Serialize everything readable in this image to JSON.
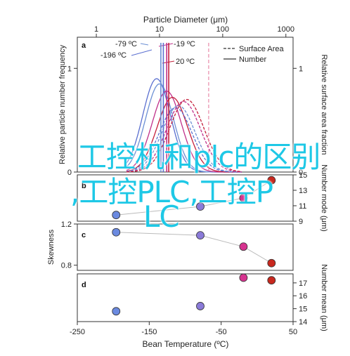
{
  "chart_data": [
    {
      "panel": "a",
      "type": "line",
      "top_axis": {
        "label": "Particle Diameter (μm)",
        "scale": "log",
        "ticks": [
          "1",
          "10",
          "100",
          "1000"
        ],
        "range": [
          0.5,
          1300
        ]
      },
      "y_left": {
        "label": "Relative particle number frequency",
        "ticks": [
          "0",
          "1"
        ],
        "range": [
          0,
          1.3
        ]
      },
      "y_right": {
        "label": "Relative surface area fraction",
        "ticks": [
          "0",
          "1"
        ],
        "range": [
          0,
          1.3
        ]
      },
      "legend": {
        "placement": "top-right",
        "entries": [
          {
            "label": "Surface Area",
            "style": "dashed"
          },
          {
            "label": "Number",
            "style": "solid"
          }
        ]
      },
      "annotations": [
        {
          "text": "-79 ºC",
          "color": "#6b8fd4"
        },
        {
          "text": "-196 ºC",
          "color": "#5a6fd0"
        },
        {
          "text": "-19 ºC",
          "color": "#c0308a"
        },
        {
          "text": "20 ºC",
          "color": "#c41e3a"
        }
      ],
      "vertical_markers": [
        {
          "x": 10.5,
          "color": "#6b8fd4"
        },
        {
          "x": 11.5,
          "color": "#5a6fd0"
        },
        {
          "x": 13.0,
          "color": "#c0308a"
        },
        {
          "x": 14.0,
          "color": "#c41e3a"
        },
        {
          "x": 60,
          "color": "#e88aa8",
          "style": "dashed"
        }
      ],
      "series": [
        {
          "name": "-196 ºC",
          "kind": "number",
          "color": "#5a6fd0",
          "peak_x": 9,
          "peak_y": 0.9,
          "width": 0.22
        },
        {
          "name": "-79 ºC",
          "kind": "number",
          "color": "#6b8fd4",
          "peak_x": 10,
          "peak_y": 0.85,
          "width": 0.22
        },
        {
          "name": "-19 ºC",
          "kind": "number",
          "color": "#c0308a",
          "peak_x": 13,
          "peak_y": 0.78,
          "width": 0.23
        },
        {
          "name": "20 ºC",
          "kind": "number",
          "color": "#c41e3a",
          "peak_x": 16,
          "peak_y": 0.72,
          "width": 0.24
        },
        {
          "name": "-196 ºC",
          "kind": "surface",
          "color": "#5a6fd0",
          "peak_x": 18,
          "peak_y": 0.62,
          "width": 0.26
        },
        {
          "name": "-79 ºC",
          "kind": "surface",
          "color": "#6b8fd4",
          "peak_x": 20,
          "peak_y": 0.64,
          "width": 0.26
        },
        {
          "name": "-19 ºC",
          "kind": "surface",
          "color": "#c0308a",
          "peak_x": 24,
          "peak_y": 0.68,
          "width": 0.27
        },
        {
          "name": "20 ºC",
          "kind": "surface",
          "color": "#c41e3a",
          "peak_x": 27,
          "peak_y": 0.7,
          "width": 0.27
        }
      ]
    },
    {
      "panel": "b",
      "type": "scatter",
      "y_right": {
        "label": "Number mode (μm)",
        "ticks": [
          "9",
          "11",
          "13",
          "15"
        ],
        "range": [
          9,
          15
        ]
      },
      "x": [
        -196,
        -79,
        -19,
        20
      ],
      "values": [
        9.8,
        10.9,
        12.0,
        14.3
      ]
    },
    {
      "panel": "c",
      "type": "scatter",
      "y_left": {
        "label": "Skewness",
        "ticks": [
          "0.8",
          "1.2"
        ],
        "range": [
          0.75,
          1.2
        ]
      },
      "x": [
        -196,
        -79,
        -19,
        20
      ],
      "values": [
        1.12,
        1.09,
        0.98,
        0.82
      ]
    },
    {
      "panel": "d",
      "type": "scatter",
      "y_right": {
        "label": "Number mean (μm)",
        "ticks": [
          "14",
          "15",
          "16",
          "17"
        ],
        "range": [
          14,
          17.7
        ]
      },
      "x": [
        -196,
        -79,
        -19,
        20
      ],
      "values": [
        14.8,
        15.2,
        17.4,
        17.2
      ]
    }
  ],
  "bottom_axis": {
    "label": "Bean Temperature (ºC)",
    "ticks": [
      "-250",
      "-150",
      "-50",
      "50"
    ],
    "range": [
      -250,
      50
    ]
  },
  "point_colors": [
    "#6b8ae0",
    "#8a7ad8",
    "#d6338f",
    "#c8281e"
  ],
  "overlay_text": {
    "line1": "工控机和plc的区别",
    "line2": ",工控PLC,工控P",
    "line3": "LC"
  }
}
